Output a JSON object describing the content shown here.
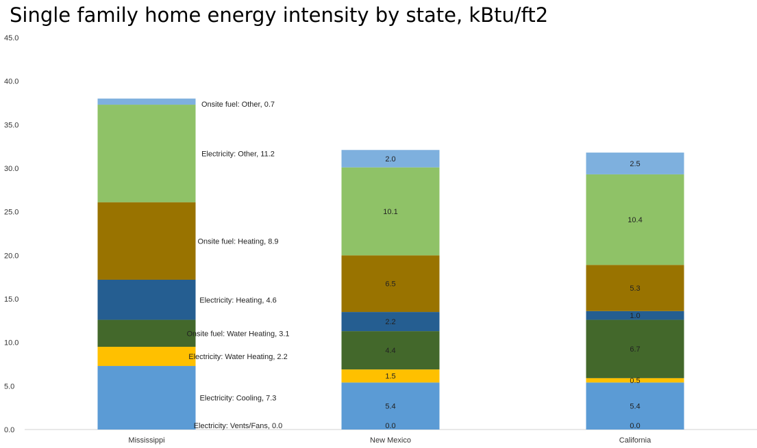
{
  "chart_data": {
    "type": "bar",
    "stacked": true,
    "title": "Single family home energy intensity by state, kBtu/ft2",
    "xlabel": "",
    "ylabel": "",
    "ylim": [
      0,
      45
    ],
    "y_ticks": [
      "0.0",
      "5.0",
      "10.0",
      "15.0",
      "20.0",
      "25.0",
      "30.0",
      "35.0",
      "40.0",
      "45.0"
    ],
    "grid": false,
    "legend": "none",
    "categories": [
      "Mississippi",
      "New Mexico",
      "California"
    ],
    "series": [
      {
        "name": "Electricity: Vents/Fans",
        "color": "#5b9bd5",
        "values": [
          0.0,
          0.0,
          0.0
        ],
        "labels": [
          "Electricity: Vents/Fans, 0.0",
          "0.0",
          "0.0"
        ]
      },
      {
        "name": "Electricity: Cooling",
        "color": "#5b9bd5",
        "values": [
          7.3,
          5.4,
          5.4
        ],
        "labels": [
          "Electricity: Cooling, 7.3",
          "5.4",
          "5.4"
        ]
      },
      {
        "name": "Electricity: Water Heating",
        "color": "#ffc000",
        "values": [
          2.2,
          1.5,
          0.5
        ],
        "labels": [
          "Electricity: Water Heating, 2.2",
          "1.5",
          "0.5"
        ]
      },
      {
        "name": "Onsite fuel: Water Heating",
        "color": "#43682b",
        "values": [
          3.1,
          4.4,
          6.7
        ],
        "labels": [
          "Onsite fuel: Water Heating, 3.1",
          "4.4",
          "6.7"
        ]
      },
      {
        "name": "Electricity: Heating",
        "color": "#255e91",
        "values": [
          4.6,
          2.2,
          1.0
        ],
        "labels": [
          "Electricity: Heating, 4.6",
          "2.2",
          "1.0"
        ]
      },
      {
        "name": "Onsite fuel: Heating",
        "color": "#997300",
        "values": [
          8.9,
          6.5,
          5.3
        ],
        "labels": [
          "Onsite fuel: Heating, 8.9",
          "6.5",
          "5.3"
        ]
      },
      {
        "name": "Electricity: Other",
        "color": "#8fc267",
        "values": [
          11.2,
          10.1,
          10.4
        ],
        "labels": [
          "Electricity: Other, 11.2",
          "10.1",
          "10.4"
        ]
      },
      {
        "name": "Onsite fuel: Other",
        "color": "#7eb0de",
        "values": [
          0.7,
          2.0,
          2.5
        ],
        "labels": [
          "Onsite fuel: Other, 0.7",
          "2.0",
          "2.5"
        ]
      }
    ]
  }
}
